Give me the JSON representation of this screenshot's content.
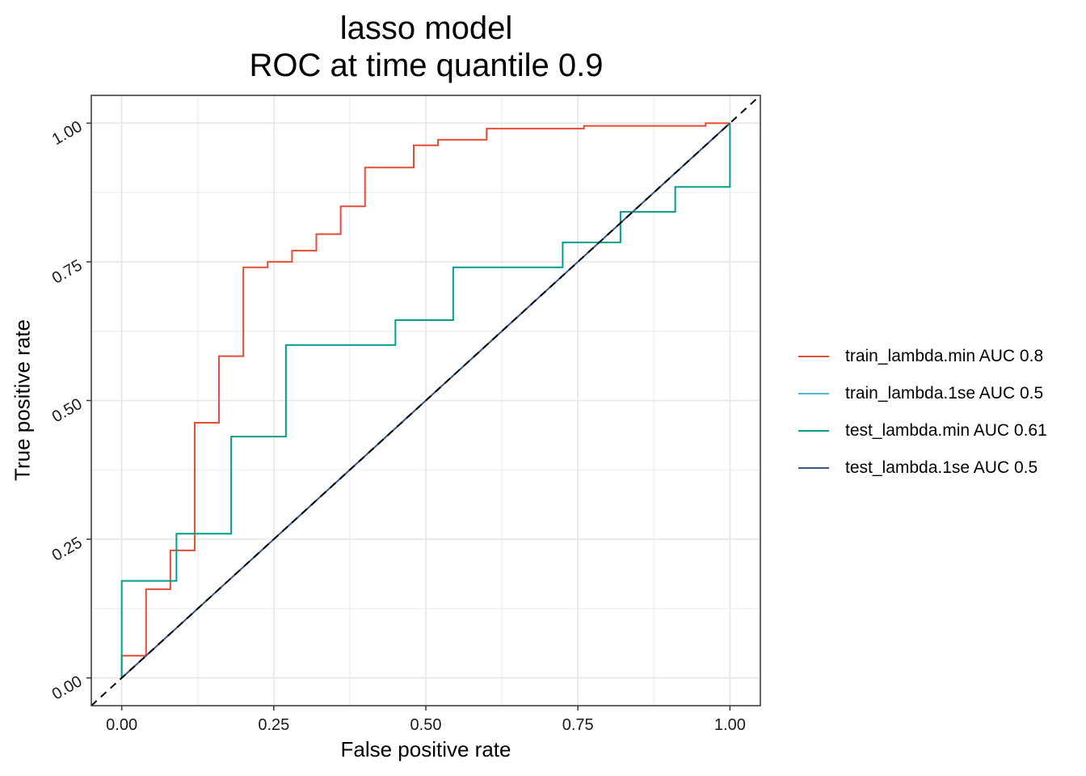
{
  "chart_data": {
    "type": "line",
    "title": [
      "lasso model",
      "ROC at time quantile 0.9"
    ],
    "xlabel": "False positive rate",
    "ylabel": "True positive rate",
    "xlim": [
      -0.05,
      1.05
    ],
    "ylim": [
      -0.05,
      1.05
    ],
    "x_ticks": [
      0,
      0.25,
      0.5,
      0.75,
      1
    ],
    "x_tick_labels": [
      "0.00",
      "0.25",
      "0.50",
      "0.75",
      "1.00"
    ],
    "y_ticks": [
      0,
      0.25,
      0.5,
      0.75,
      1
    ],
    "y_tick_labels": [
      "0.00",
      "0.25",
      "0.50",
      "0.75",
      "1.00"
    ],
    "grid": true,
    "legend_position": "right",
    "diagonal_reference": true,
    "series": [
      {
        "name": "train_lambda.min AUC 0.8",
        "color": "#E64B35",
        "x": [
          0,
          0,
          0.04,
          0.04,
          0.08,
          0.08,
          0.12,
          0.12,
          0.16,
          0.16,
          0.2,
          0.2,
          0.24,
          0.24,
          0.28,
          0.28,
          0.32,
          0.32,
          0.36,
          0.36,
          0.4,
          0.4,
          0.48,
          0.48,
          0.52,
          0.52,
          0.6,
          0.6,
          0.76,
          0.76,
          0.96,
          0.96,
          1
        ],
        "y": [
          0,
          0.04,
          0.04,
          0.16,
          0.16,
          0.23,
          0.23,
          0.46,
          0.46,
          0.58,
          0.58,
          0.74,
          0.74,
          0.75,
          0.75,
          0.77,
          0.77,
          0.8,
          0.8,
          0.85,
          0.85,
          0.92,
          0.92,
          0.96,
          0.96,
          0.97,
          0.97,
          0.99,
          0.99,
          0.995,
          0.995,
          1,
          1
        ]
      },
      {
        "name": "train_lambda.1se AUC 0.5",
        "color": "#4DBBD5",
        "x": [
          0,
          1
        ],
        "y": [
          0,
          1
        ]
      },
      {
        "name": "test_lambda.min AUC 0.61",
        "color": "#00A087",
        "x": [
          0,
          0,
          0.09,
          0.09,
          0.18,
          0.18,
          0.27,
          0.27,
          0.45,
          0.45,
          0.545,
          0.545,
          0.725,
          0.725,
          0.82,
          0.82,
          0.91,
          0.91,
          1,
          1
        ],
        "y": [
          0,
          0.175,
          0.175,
          0.26,
          0.26,
          0.435,
          0.435,
          0.6,
          0.6,
          0.645,
          0.645,
          0.74,
          0.74,
          0.785,
          0.785,
          0.84,
          0.84,
          0.885,
          0.885,
          1
        ]
      },
      {
        "name": "test_lambda.1se AUC 0.5",
        "color": "#3C5488",
        "x": [
          0,
          1
        ],
        "y": [
          0,
          1
        ]
      }
    ]
  }
}
